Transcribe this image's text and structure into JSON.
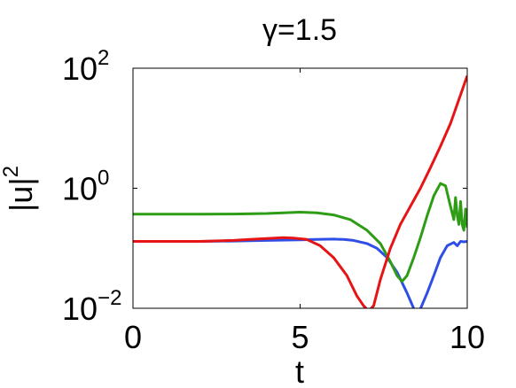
{
  "chart_data": {
    "type": "line",
    "title": "γ=1.5",
    "xlabel": "t",
    "ylabel": "|u|",
    "ylabel_superscript": "2",
    "xlim": [
      0,
      10
    ],
    "ylim": [
      0.01,
      100
    ],
    "yscale": "log",
    "grid": false,
    "x_ticks": [
      {
        "value": 0,
        "label": "0"
      },
      {
        "value": 5,
        "label": "5"
      },
      {
        "value": 10,
        "label": "10"
      }
    ],
    "y_ticks": [
      {
        "value": 0.01,
        "base": "10",
        "exponent": "−2"
      },
      {
        "value": 1,
        "base": "10",
        "exponent": "0"
      },
      {
        "value": 100,
        "base": "10",
        "exponent": "2"
      }
    ],
    "series": [
      {
        "color": "#2e4ee6",
        "points": [
          [
            0,
            0.13
          ],
          [
            1,
            0.13
          ],
          [
            2,
            0.13
          ],
          [
            3,
            0.132
          ],
          [
            4,
            0.135
          ],
          [
            5,
            0.138
          ],
          [
            5.5,
            0.14
          ],
          [
            6,
            0.142
          ],
          [
            6.3,
            0.14
          ],
          [
            6.6,
            0.135
          ],
          [
            7,
            0.12
          ],
          [
            7.3,
            0.1
          ],
          [
            7.6,
            0.07
          ],
          [
            7.9,
            0.04
          ],
          [
            8.2,
            0.018
          ],
          [
            8.45,
            0.0085
          ],
          [
            8.6,
            0.0098
          ],
          [
            8.8,
            0.018
          ],
          [
            9.0,
            0.035
          ],
          [
            9.2,
            0.07
          ],
          [
            9.4,
            0.11
          ],
          [
            9.6,
            0.125
          ],
          [
            9.7,
            0.11
          ],
          [
            9.8,
            0.13
          ],
          [
            9.9,
            0.128
          ],
          [
            10,
            0.13
          ]
        ]
      },
      {
        "color": "#2e9c14",
        "points": [
          [
            0,
            0.37
          ],
          [
            1,
            0.37
          ],
          [
            2,
            0.37
          ],
          [
            3,
            0.372
          ],
          [
            4,
            0.38
          ],
          [
            4.5,
            0.39
          ],
          [
            5,
            0.4
          ],
          [
            5.5,
            0.39
          ],
          [
            6,
            0.36
          ],
          [
            6.5,
            0.3
          ],
          [
            7,
            0.2
          ],
          [
            7.4,
            0.12
          ],
          [
            7.7,
            0.06
          ],
          [
            7.9,
            0.035
          ],
          [
            8.05,
            0.028
          ],
          [
            8.2,
            0.035
          ],
          [
            8.4,
            0.07
          ],
          [
            8.6,
            0.15
          ],
          [
            8.8,
            0.35
          ],
          [
            9.0,
            0.75
          ],
          [
            9.2,
            1.2
          ],
          [
            9.35,
            1.1
          ],
          [
            9.5,
            0.5
          ],
          [
            9.6,
            0.3
          ],
          [
            9.65,
            0.7
          ],
          [
            9.7,
            0.35
          ],
          [
            9.75,
            0.25
          ],
          [
            9.8,
            0.6
          ],
          [
            9.85,
            0.25
          ],
          [
            9.9,
            0.2
          ],
          [
            9.95,
            0.45
          ],
          [
            10,
            0.22
          ]
        ]
      },
      {
        "color": "#e61414",
        "points": [
          [
            0,
            0.13
          ],
          [
            1,
            0.13
          ],
          [
            2,
            0.13
          ],
          [
            3,
            0.135
          ],
          [
            3.5,
            0.14
          ],
          [
            4,
            0.145
          ],
          [
            4.5,
            0.15
          ],
          [
            4.8,
            0.148
          ],
          [
            5.2,
            0.14
          ],
          [
            5.6,
            0.11
          ],
          [
            6,
            0.07
          ],
          [
            6.4,
            0.035
          ],
          [
            6.7,
            0.016
          ],
          [
            6.9,
            0.011
          ],
          [
            7.05,
            0.009
          ],
          [
            7.2,
            0.011
          ],
          [
            7.4,
            0.03
          ],
          [
            7.7,
            0.1
          ],
          [
            8,
            0.25
          ],
          [
            8.3,
            0.5
          ],
          [
            8.6,
            1.0
          ],
          [
            8.9,
            2.2
          ],
          [
            9.2,
            5
          ],
          [
            9.5,
            12
          ],
          [
            9.75,
            30
          ],
          [
            10,
            75
          ]
        ]
      }
    ]
  }
}
